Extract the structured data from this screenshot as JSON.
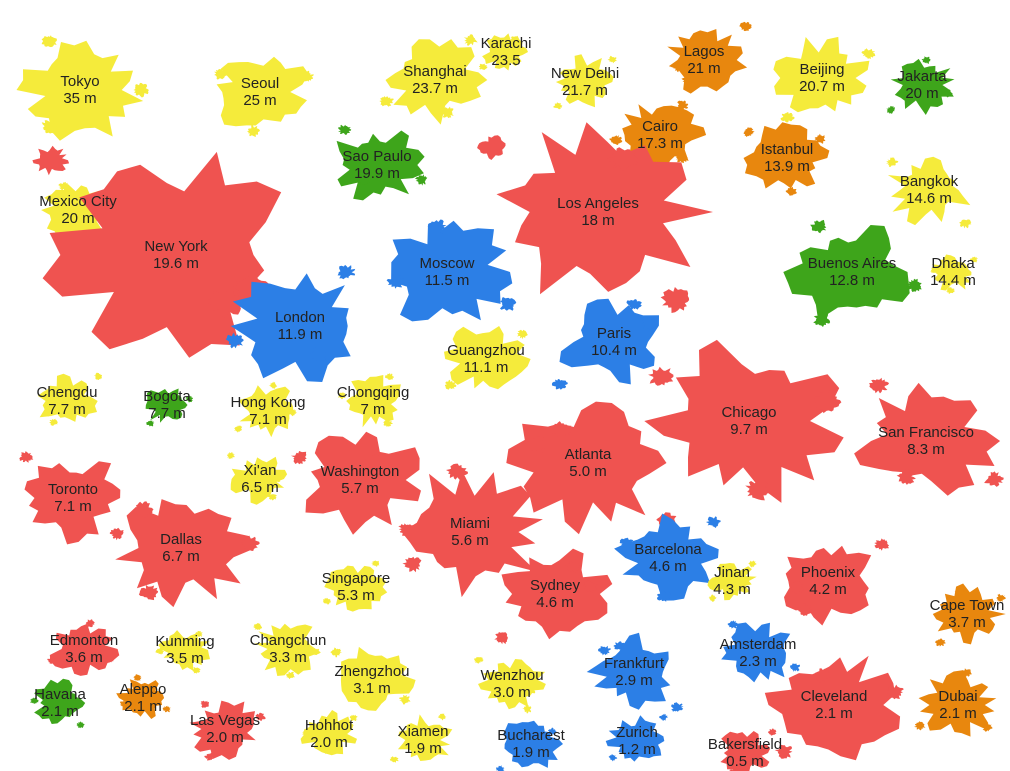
{
  "palette": {
    "north_america": "#ef5350",
    "asia": "#f5eb3b",
    "europe": "#2c7fe6",
    "africa_middle_east": "#e8870e",
    "south_america_se_asia": "#3ea51b"
  },
  "cities": [
    {
      "name": "Tokyo",
      "pop": "35 m",
      "color": "asia"
    },
    {
      "name": "Seoul",
      "pop": "25 m",
      "color": "asia"
    },
    {
      "name": "Shanghai",
      "pop": "23.7 m",
      "color": "asia"
    },
    {
      "name": "Karachi",
      "pop": "23.5",
      "color": "asia"
    },
    {
      "name": "New Delhi",
      "pop": "21.7 m",
      "color": "asia"
    },
    {
      "name": "Lagos",
      "pop": "21 m",
      "color": "africa_middle_east"
    },
    {
      "name": "Beijing",
      "pop": "20.7 m",
      "color": "asia"
    },
    {
      "name": "Jakarta",
      "pop": "20 m",
      "color": "south_america_se_asia"
    },
    {
      "name": "Cairo",
      "pop": "17.3 m",
      "color": "africa_middle_east"
    },
    {
      "name": "Istanbul",
      "pop": "13.9 m",
      "color": "africa_middle_east"
    },
    {
      "name": "Sao Paulo",
      "pop": "19.9 m",
      "color": "south_america_se_asia"
    },
    {
      "name": "Mexico City",
      "pop": "20 m",
      "color": "asia"
    },
    {
      "name": "Bangkok",
      "pop": "14.6 m",
      "color": "asia"
    },
    {
      "name": "New York",
      "pop": "19.6 m",
      "color": "north_america"
    },
    {
      "name": "Los Angeles",
      "pop": "18 m",
      "color": "north_america"
    },
    {
      "name": "Moscow",
      "pop": "11.5 m",
      "color": "europe"
    },
    {
      "name": "Buenos Aires",
      "pop": "12.8 m",
      "color": "south_america_se_asia"
    },
    {
      "name": "Dhaka",
      "pop": "14.4 m",
      "color": "asia"
    },
    {
      "name": "London",
      "pop": "11.9 m",
      "color": "europe"
    },
    {
      "name": "Paris",
      "pop": "10.4 m",
      "color": "europe"
    },
    {
      "name": "Guangzhou",
      "pop": "11.1 m",
      "color": "asia"
    },
    {
      "name": "Chengdu",
      "pop": "7.7 m",
      "color": "asia"
    },
    {
      "name": "Bogota",
      "pop": "7.7 m",
      "color": "south_america_se_asia"
    },
    {
      "name": "Hong Kong",
      "pop": "7.1 m",
      "color": "asia"
    },
    {
      "name": "Chongqing",
      "pop": "7 m",
      "color": "asia"
    },
    {
      "name": "Chicago",
      "pop": "9.7 m",
      "color": "north_america"
    },
    {
      "name": "San Francisco",
      "pop": "8.3 m",
      "color": "north_america"
    },
    {
      "name": "Atlanta",
      "pop": "5.0 m",
      "color": "north_america"
    },
    {
      "name": "Toronto",
      "pop": "7.1 m",
      "color": "north_america"
    },
    {
      "name": "Xi'an",
      "pop": "6.5 m",
      "color": "asia"
    },
    {
      "name": "Washington",
      "pop": "5.7 m",
      "color": "north_america"
    },
    {
      "name": "Miami",
      "pop": "5.6 m",
      "color": "north_america"
    },
    {
      "name": "Dallas",
      "pop": "6.7 m",
      "color": "north_america"
    },
    {
      "name": "Barcelona",
      "pop": "4.6 m",
      "color": "europe"
    },
    {
      "name": "Singapore",
      "pop": "5.3 m",
      "color": "asia"
    },
    {
      "name": "Sydney",
      "pop": "4.6 m",
      "color": "north_america"
    },
    {
      "name": "Jinan",
      "pop": "4.3 m",
      "color": "asia"
    },
    {
      "name": "Phoenix",
      "pop": "4.2 m",
      "color": "north_america"
    },
    {
      "name": "Cape Town",
      "pop": "3.7 m",
      "color": "africa_middle_east"
    },
    {
      "name": "Edmonton",
      "pop": "3.6 m",
      "color": "north_america"
    },
    {
      "name": "Kunming",
      "pop": "3.5 m",
      "color": "asia"
    },
    {
      "name": "Changchun",
      "pop": "3.3 m",
      "color": "asia"
    },
    {
      "name": "Amsterdam",
      "pop": "2.3 m",
      "color": "europe"
    },
    {
      "name": "Frankfurt",
      "pop": "2.9 m",
      "color": "europe"
    },
    {
      "name": "Zhengzhou",
      "pop": "3.1 m",
      "color": "asia"
    },
    {
      "name": "Wenzhou",
      "pop": "3.0 m",
      "color": "asia"
    },
    {
      "name": "Havana",
      "pop": "2.1 m",
      "color": "south_america_se_asia"
    },
    {
      "name": "Aleppo",
      "pop": "2.1 m",
      "color": "africa_middle_east"
    },
    {
      "name": "Las Vegas",
      "pop": "2.0 m",
      "color": "north_america"
    },
    {
      "name": "Hohhot",
      "pop": "2.0 m",
      "color": "asia"
    },
    {
      "name": "Xiamen",
      "pop": "1.9 m",
      "color": "asia"
    },
    {
      "name": "Bucharest",
      "pop": "1.9 m",
      "color": "europe"
    },
    {
      "name": "Zurich",
      "pop": "1.2 m",
      "color": "europe"
    },
    {
      "name": "Bakersfield",
      "pop": "0.5 m",
      "color": "north_america"
    },
    {
      "name": "Cleveland",
      "pop": "2.1 m",
      "color": "north_america"
    },
    {
      "name": "Dubai",
      "pop": "2.1 m",
      "color": "africa_middle_east"
    }
  ]
}
